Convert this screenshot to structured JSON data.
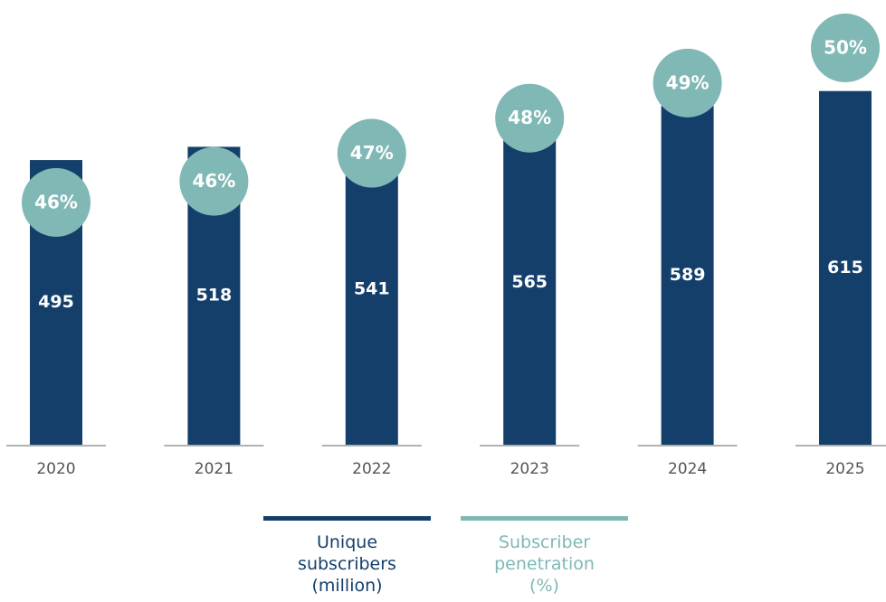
{
  "chart_data": {
    "type": "bar",
    "categories": [
      "2020",
      "2021",
      "2022",
      "2023",
      "2024",
      "2025"
    ],
    "series": [
      {
        "name": "Unique subscribers (million)",
        "color": "#143f6b",
        "values": [
          495,
          518,
          541,
          565,
          589,
          615
        ]
      },
      {
        "name": "Subscriber penetration (%)",
        "color": "#7fb8b5",
        "axis": "y2",
        "values": [
          45.6,
          46.2,
          47,
          48,
          49,
          50
        ],
        "value_labels": [
          "46%",
          "46%",
          "47%",
          "48%",
          "49%",
          "50%"
        ]
      }
    ],
    "ylim": [
      0,
      690
    ],
    "y2lim": [
      38.7,
      50
    ]
  }
}
